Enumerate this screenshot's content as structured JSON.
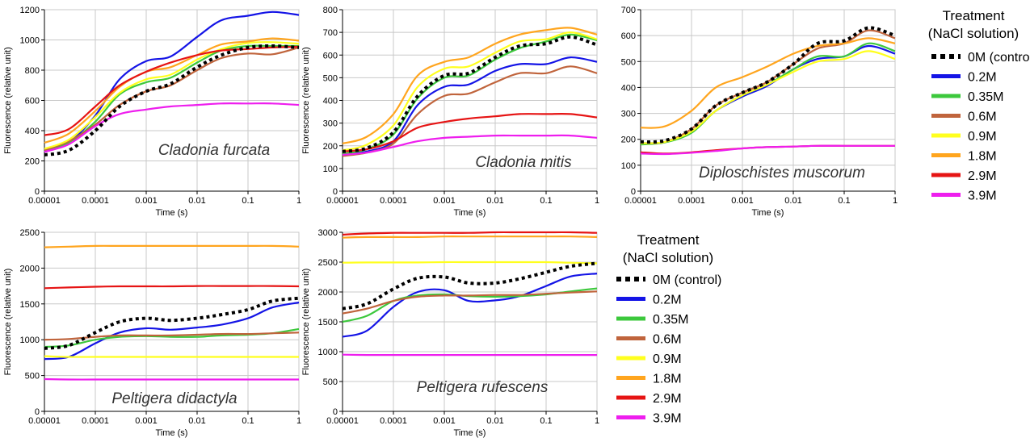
{
  "colors": {
    "control": "#000000",
    "0.2M": "#1414e6",
    "0.35M": "#3cc83c",
    "0.6M": "#c0643c",
    "0.9M": "#ffff1e",
    "1.8M": "#ffa51e",
    "2.9M": "#e61414",
    "3.9M": "#ee1eee",
    "grid": "#c8c8c8",
    "axis": "#000000"
  },
  "legends": [
    {
      "title_line1": "Treatment",
      "title_line2": "(NaCl solution)"
    },
    {
      "title_line1": "Treatment",
      "title_line2": "(NaCl solution)"
    }
  ],
  "chart_data": [
    {
      "type": "line",
      "title": "Cladonia furcata",
      "xlabel": "Time (s)",
      "ylabel": "Fluorescence (relative unit)",
      "xscale": "log",
      "xlim": [
        1e-05,
        1
      ],
      "ylim": [
        0,
        1200
      ],
      "xticks": [
        "0.00001",
        "0.0001",
        "0.001",
        "0.01",
        "0.1",
        "1"
      ],
      "yticks": [
        "0",
        "200",
        "400",
        "600",
        "800",
        "1000",
        "1200"
      ],
      "grid": true,
      "x": [
        1e-05,
        3e-05,
        0.0001,
        0.0003,
        0.001,
        0.003,
        0.01,
        0.03,
        0.1,
        0.3,
        1
      ],
      "series": [
        {
          "name": "0M (control)",
          "values": [
            240,
            270,
            400,
            560,
            660,
            710,
            820,
            900,
            950,
            960,
            950
          ]
        },
        {
          "name": "0.2M",
          "values": [
            260,
            320,
            500,
            740,
            860,
            890,
            1020,
            1130,
            1160,
            1185,
            1165
          ]
        },
        {
          "name": "0.35M",
          "values": [
            270,
            320,
            460,
            640,
            720,
            750,
            850,
            930,
            960,
            960,
            960
          ]
        },
        {
          "name": "0.6M",
          "values": [
            270,
            330,
            440,
            570,
            660,
            700,
            800,
            880,
            910,
            905,
            950
          ]
        },
        {
          "name": "0.9M",
          "values": [
            280,
            340,
            490,
            650,
            740,
            770,
            870,
            940,
            980,
            985,
            975
          ]
        },
        {
          "name": "1.8M",
          "values": [
            320,
            380,
            530,
            690,
            790,
            820,
            900,
            970,
            990,
            1010,
            995
          ]
        },
        {
          "name": "2.9M",
          "values": [
            370,
            410,
            560,
            700,
            790,
            850,
            900,
            930,
            940,
            950,
            955
          ]
        },
        {
          "name": "3.9M",
          "values": [
            260,
            310,
            430,
            510,
            540,
            560,
            570,
            580,
            580,
            580,
            570
          ]
        }
      ]
    },
    {
      "type": "line",
      "title": "Cladonia mitis",
      "xlabel": "Time (s)",
      "ylabel": "Fluorescence (relative unit)",
      "xscale": "log",
      "xlim": [
        1e-05,
        1
      ],
      "ylim": [
        0,
        800
      ],
      "xticks": [
        "0.00001",
        "0.0001",
        "0.001",
        "0.01",
        "0.1",
        "1"
      ],
      "yticks": [
        "0",
        "100",
        "200",
        "300",
        "400",
        "500",
        "600",
        "700",
        "800"
      ],
      "grid": true,
      "x": [
        1e-05,
        3e-05,
        0.0001,
        0.0003,
        0.001,
        0.003,
        0.01,
        0.03,
        0.1,
        0.3,
        1
      ],
      "series": [
        {
          "name": "0M (control)",
          "values": [
            175,
            190,
            260,
            420,
            510,
            520,
            590,
            640,
            650,
            680,
            645
          ]
        },
        {
          "name": "0.2M",
          "values": [
            160,
            175,
            220,
            380,
            460,
            470,
            530,
            560,
            560,
            590,
            570
          ]
        },
        {
          "name": "0.35M",
          "values": [
            165,
            185,
            250,
            410,
            500,
            510,
            580,
            630,
            660,
            690,
            665
          ]
        },
        {
          "name": "0.6M",
          "values": [
            155,
            170,
            210,
            340,
            420,
            430,
            480,
            520,
            520,
            550,
            520
          ]
        },
        {
          "name": "0.9M",
          "values": [
            180,
            205,
            290,
            460,
            540,
            550,
            610,
            660,
            670,
            700,
            670
          ]
        },
        {
          "name": "1.8M",
          "values": [
            210,
            240,
            340,
            510,
            570,
            590,
            650,
            690,
            710,
            720,
            690
          ]
        },
        {
          "name": "2.9M",
          "values": [
            175,
            185,
            220,
            280,
            305,
            320,
            330,
            340,
            340,
            340,
            325
          ]
        },
        {
          "name": "3.9M",
          "values": [
            160,
            170,
            195,
            220,
            235,
            240,
            245,
            245,
            245,
            245,
            235
          ]
        }
      ]
    },
    {
      "type": "line",
      "title": "Diploschistes muscorum",
      "xlabel": "Time (s)",
      "ylabel": "",
      "xscale": "log",
      "xlim": [
        1e-05,
        1
      ],
      "ylim": [
        0,
        700
      ],
      "xticks": [
        "0.00001",
        "0.0001",
        "0.001",
        "0.01",
        "0.1",
        "1"
      ],
      "yticks": [
        "0",
        "100",
        "200",
        "300",
        "400",
        "500",
        "600",
        "700"
      ],
      "grid": true,
      "x": [
        1e-05,
        3e-05,
        0.0001,
        0.0003,
        0.001,
        0.003,
        0.01,
        0.03,
        0.1,
        0.3,
        1
      ],
      "series": [
        {
          "name": "0M (control)",
          "values": [
            190,
            195,
            240,
            330,
            380,
            420,
            490,
            570,
            580,
            630,
            600
          ]
        },
        {
          "name": "0.2M",
          "values": [
            185,
            190,
            230,
            310,
            365,
            405,
            470,
            510,
            520,
            560,
            530
          ]
        },
        {
          "name": "0.35M",
          "values": [
            180,
            188,
            225,
            310,
            370,
            410,
            470,
            520,
            520,
            570,
            540
          ]
        },
        {
          "name": "0.6M",
          "values": [
            185,
            190,
            240,
            330,
            380,
            420,
            490,
            550,
            570,
            620,
            590
          ]
        },
        {
          "name": "0.9M",
          "values": [
            185,
            190,
            230,
            310,
            370,
            410,
            460,
            500,
            510,
            540,
            510
          ]
        },
        {
          "name": "1.8M",
          "values": [
            245,
            250,
            310,
            400,
            440,
            480,
            530,
            560,
            570,
            590,
            570
          ]
        },
        {
          "name": "2.9M",
          "values": [
            150,
            145,
            150,
            158,
            165,
            170,
            172,
            175,
            175,
            175,
            175
          ]
        },
        {
          "name": "3.9M",
          "values": [
            145,
            143,
            148,
            155,
            165,
            170,
            172,
            175,
            175,
            175,
            175
          ]
        }
      ]
    },
    {
      "type": "line",
      "title": "Peltigera didactyla",
      "xlabel": "Time (s)",
      "ylabel": "Fluorescence (relative unit)",
      "xscale": "log",
      "xlim": [
        1e-05,
        1
      ],
      "ylim": [
        0,
        2500
      ],
      "xticks": [
        "0.00001",
        "0.0001",
        "0.001",
        "0.01",
        "0.1",
        "1"
      ],
      "yticks": [
        "0",
        "500",
        "1000",
        "1500",
        "2000",
        "2500"
      ],
      "grid": true,
      "x": [
        1e-05,
        3e-05,
        0.0001,
        0.0003,
        0.001,
        0.003,
        0.01,
        0.03,
        0.1,
        0.3,
        1
      ],
      "series": [
        {
          "name": "0M (control)",
          "values": [
            880,
            920,
            1100,
            1250,
            1300,
            1270,
            1300,
            1350,
            1420,
            1540,
            1580
          ]
        },
        {
          "name": "0.2M",
          "values": [
            730,
            760,
            950,
            1100,
            1160,
            1140,
            1170,
            1210,
            1300,
            1450,
            1520
          ]
        },
        {
          "name": "0.35M",
          "values": [
            900,
            920,
            1000,
            1040,
            1050,
            1040,
            1040,
            1060,
            1070,
            1090,
            1150
          ]
        },
        {
          "name": "0.6M",
          "values": [
            1000,
            1010,
            1040,
            1060,
            1060,
            1060,
            1070,
            1080,
            1080,
            1090,
            1100
          ]
        },
        {
          "name": "0.9M",
          "values": [
            770,
            760,
            760,
            760,
            760,
            760,
            760,
            760,
            760,
            760,
            760
          ]
        },
        {
          "name": "1.8M",
          "values": [
            2290,
            2300,
            2310,
            2310,
            2310,
            2310,
            2310,
            2310,
            2310,
            2310,
            2300
          ]
        },
        {
          "name": "2.9M",
          "values": [
            1720,
            1730,
            1740,
            1745,
            1745,
            1745,
            1750,
            1750,
            1750,
            1750,
            1745
          ]
        },
        {
          "name": "3.9M",
          "values": [
            450,
            445,
            445,
            445,
            445,
            445,
            445,
            445,
            445,
            445,
            445
          ]
        }
      ]
    },
    {
      "type": "line",
      "title": "Peltigera rufescens",
      "xlabel": "Time (s)",
      "ylabel": "Fluorescence (relative unit)",
      "xscale": "log",
      "xlim": [
        1e-05,
        1
      ],
      "ylim": [
        0,
        3000
      ],
      "xticks": [
        "0.00001",
        "0.0001",
        "0.001",
        "0.01",
        "0.1",
        "1"
      ],
      "yticks": [
        "0",
        "500",
        "1000",
        "1500",
        "2000",
        "2500",
        "3000"
      ],
      "grid": true,
      "x": [
        1e-05,
        3e-05,
        0.0001,
        0.0003,
        0.001,
        0.003,
        0.01,
        0.03,
        0.1,
        0.3,
        1
      ],
      "series": [
        {
          "name": "0M (control)",
          "values": [
            1720,
            1800,
            2050,
            2230,
            2250,
            2150,
            2150,
            2220,
            2330,
            2430,
            2480
          ]
        },
        {
          "name": "0.2M",
          "values": [
            1250,
            1350,
            1750,
            2000,
            2030,
            1850,
            1860,
            1930,
            2100,
            2260,
            2310
          ]
        },
        {
          "name": "0.35M",
          "values": [
            1500,
            1600,
            1850,
            1940,
            1960,
            1930,
            1920,
            1930,
            1960,
            2010,
            2060
          ]
        },
        {
          "name": "0.6M",
          "values": [
            1640,
            1720,
            1850,
            1920,
            1940,
            1940,
            1950,
            1950,
            1970,
            1990,
            2010
          ]
        },
        {
          "name": "0.9M",
          "values": [
            2490,
            2495,
            2495,
            2495,
            2500,
            2500,
            2500,
            2500,
            2500,
            2490,
            2480
          ]
        },
        {
          "name": "1.8M",
          "values": [
            2910,
            2920,
            2920,
            2920,
            2930,
            2930,
            2930,
            2930,
            2930,
            2930,
            2920
          ]
        },
        {
          "name": "2.9M",
          "values": [
            2960,
            2980,
            2990,
            2990,
            2990,
            2990,
            3000,
            3000,
            3000,
            3000,
            2990
          ]
        },
        {
          "name": "3.9M",
          "values": [
            950,
            945,
            945,
            945,
            945,
            945,
            945,
            945,
            945,
            945,
            945
          ]
        }
      ]
    }
  ]
}
